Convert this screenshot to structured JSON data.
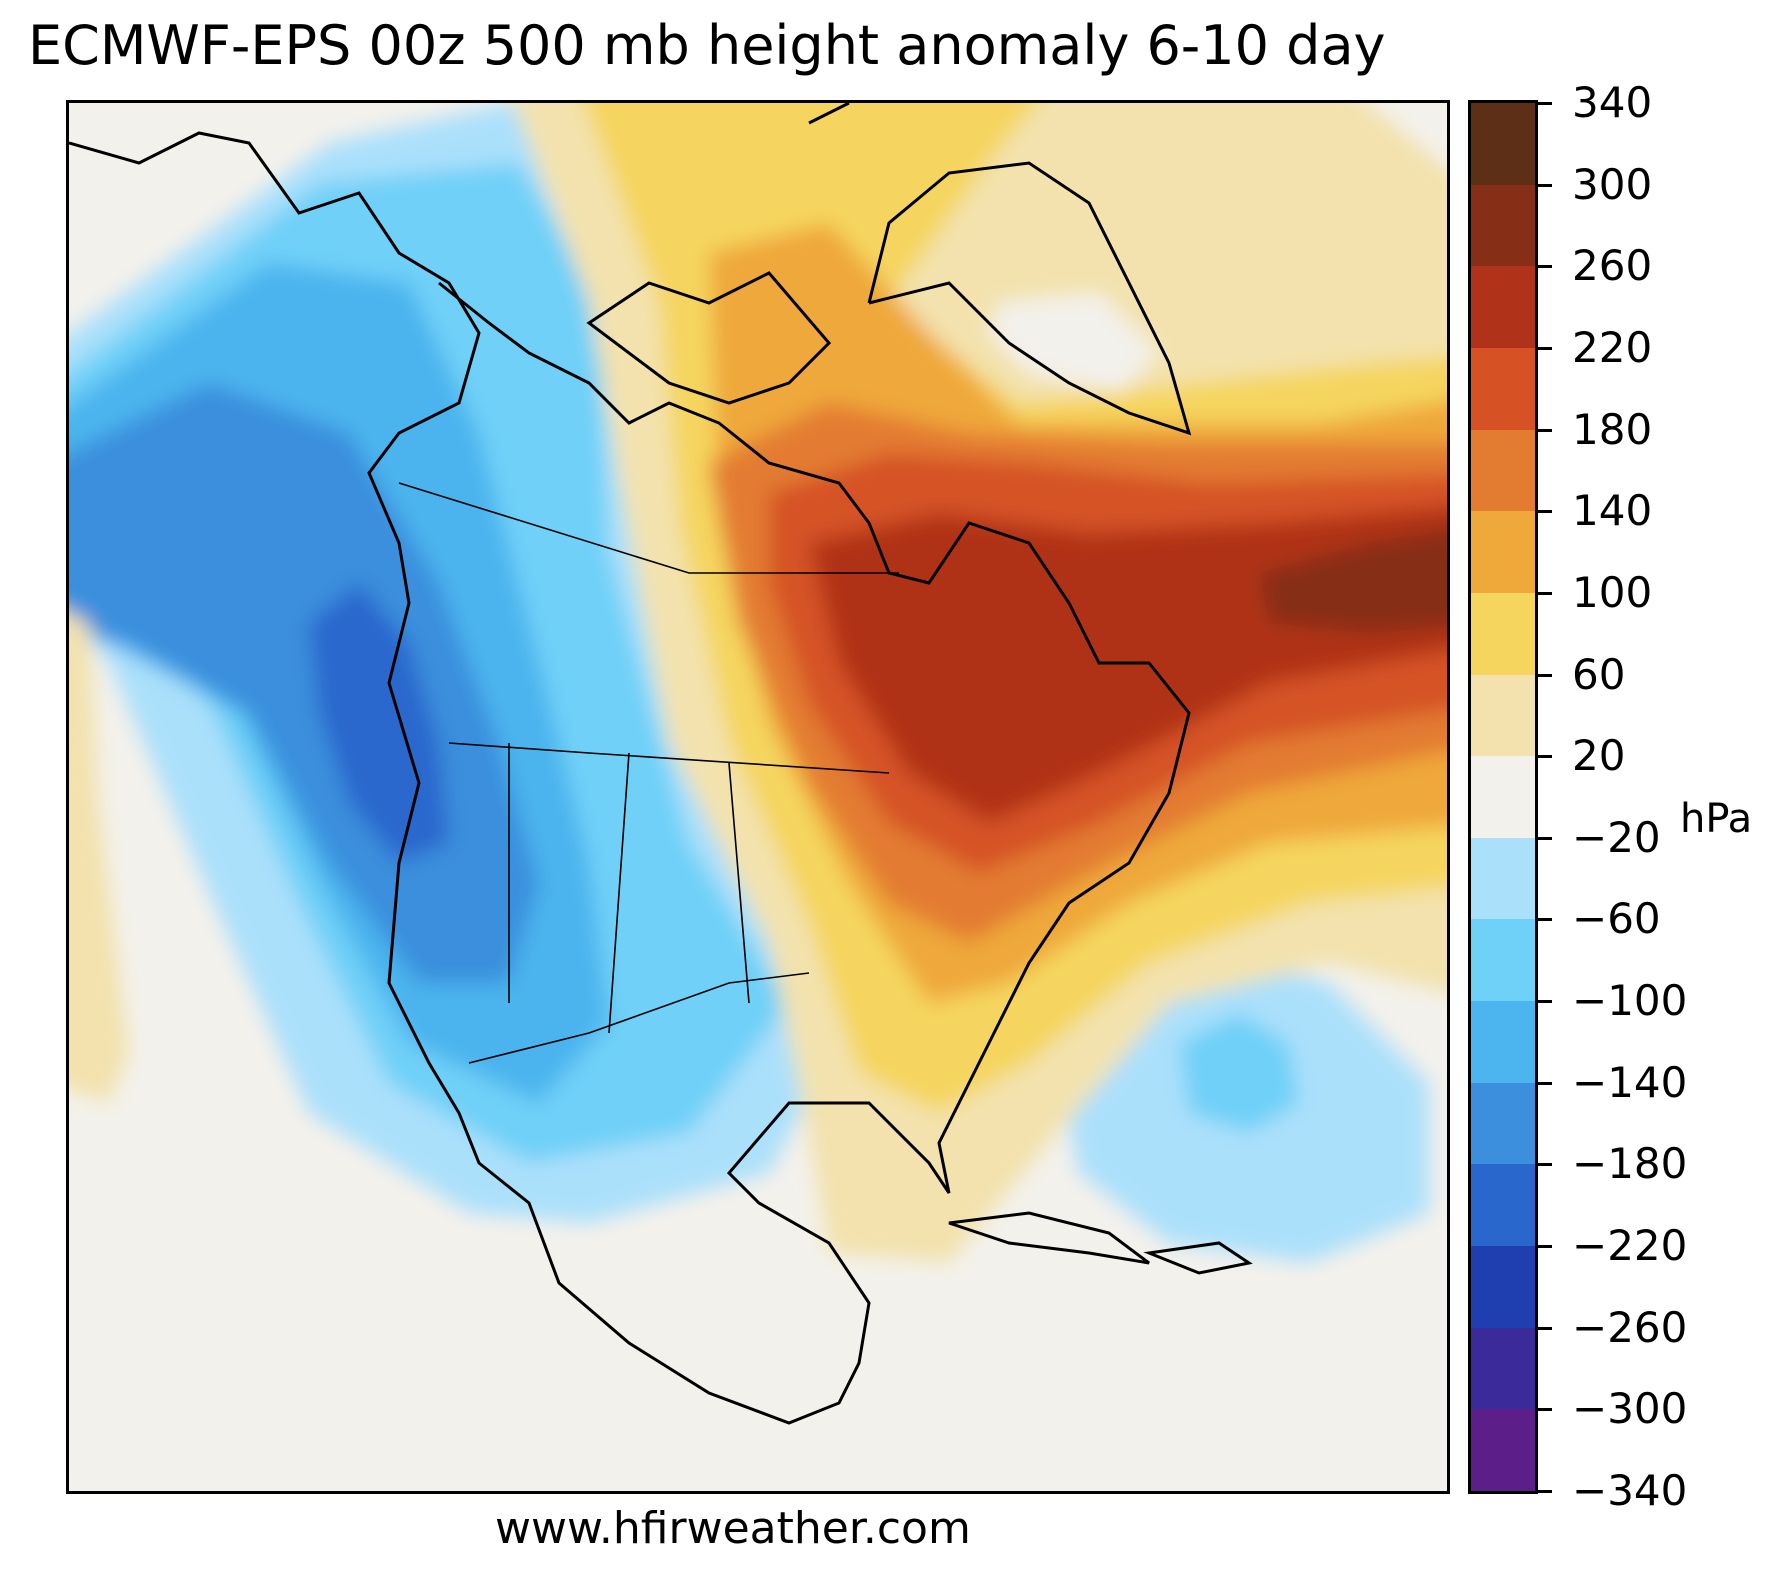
{
  "title": "ECMWF-EPS 00z 500 mb height anomaly 6-10 day",
  "credit": "www.hfirweather.com",
  "colorbar": {
    "unit": "hPa",
    "ticks": [
      "340",
      "300",
      "260",
      "220",
      "180",
      "140",
      "100",
      "60",
      "20",
      "−20",
      "−60",
      "−100",
      "−140",
      "−180",
      "−220",
      "−260",
      "−300",
      "−340"
    ],
    "bins": [
      {
        "range": "300 to 340",
        "color": "#5e2f17"
      },
      {
        "range": "260 to 300",
        "color": "#872e17"
      },
      {
        "range": "220 to 260",
        "color": "#b03218"
      },
      {
        "range": "180 to 220",
        "color": "#d65225"
      },
      {
        "range": "140 to 180",
        "color": "#e37c30"
      },
      {
        "range": "100 to 140",
        "color": "#efa83a"
      },
      {
        "range": "60 to 100",
        "color": "#f5d55e"
      },
      {
        "range": "20 to 60",
        "color": "#f3e2ad"
      },
      {
        "range": "-20 to 20",
        "color": "#f3f1ec"
      },
      {
        "range": "-60 to -20",
        "color": "#abe0fb"
      },
      {
        "range": "-100 to -60",
        "color": "#6fd0f8"
      },
      {
        "range": "-140 to -100",
        "color": "#4cb4ee"
      },
      {
        "range": "-180 to -140",
        "color": "#3b8fdd"
      },
      {
        "range": "-220 to -180",
        "color": "#2a67cd"
      },
      {
        "range": "-260 to -220",
        "color": "#1f3fb0"
      },
      {
        "range": "-300 to -260",
        "color": "#3a2a9a"
      },
      {
        "range": "-340 to -300",
        "color": "#5c1f8a"
      }
    ]
  },
  "chart_data": {
    "type": "heatmap",
    "title": "ECMWF-EPS 00z 500 mb height anomaly 6-10 day",
    "colorbar_label": "hPa",
    "levels": [
      -340,
      -300,
      -260,
      -220,
      -180,
      -140,
      -100,
      -60,
      -20,
      20,
      60,
      100,
      140,
      180,
      220,
      260,
      300,
      340
    ],
    "features": [
      {
        "name": "western-trough",
        "region": "Pacific Northwest / British Columbia coast",
        "min_anomaly_bin": "-220 to -180"
      },
      {
        "name": "eastern-ridge",
        "region": "Quebec / Labrador / Newfoundland",
        "max_anomaly_bin": "260 to 300"
      },
      {
        "name": "atlantic-low",
        "region": "western Atlantic east of Carolinas",
        "min_anomaly_bin": "-100 to -60"
      }
    ]
  }
}
